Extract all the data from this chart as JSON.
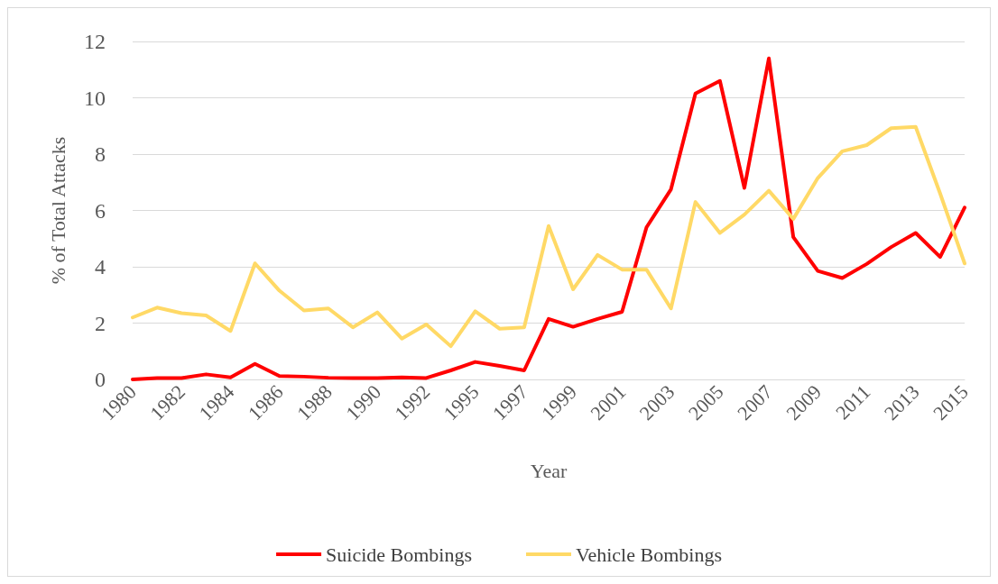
{
  "chart_data": {
    "type": "line",
    "xlabel": "Year",
    "ylabel": "% of Total Attacks",
    "categories": [
      "1980",
      null,
      "1982",
      null,
      "1984",
      null,
      "1986",
      null,
      "1988",
      null,
      "1990",
      null,
      "1992",
      null,
      "1995",
      null,
      "1997",
      null,
      "1999",
      null,
      "2001",
      null,
      "2003",
      null,
      "2005",
      null,
      "2007",
      null,
      "2009",
      null,
      "2011",
      null,
      "2013",
      null,
      "2015"
    ],
    "series": [
      {
        "name": "Suicide Bombings",
        "color": "#ff0000",
        "values": [
          0,
          0.05,
          0.05,
          0.18,
          0.07,
          0.55,
          0.12,
          0.1,
          0.06,
          0.05,
          0.05,
          0.07,
          0.05,
          0.32,
          0.62,
          0.48,
          0.32,
          2.15,
          1.87,
          2.15,
          2.4,
          5.4,
          6.75,
          10.15,
          10.6,
          6.8,
          11.4,
          5.05,
          3.85,
          3.6,
          4.1,
          4.7,
          5.2,
          4.35,
          6.1
        ]
      },
      {
        "name": "Vehicle Bombings",
        "color": "#ffd966",
        "values": [
          2.2,
          2.55,
          2.35,
          2.27,
          1.72,
          4.12,
          3.15,
          2.45,
          2.52,
          1.85,
          2.38,
          1.45,
          1.95,
          1.18,
          2.42,
          1.8,
          1.85,
          5.45,
          3.2,
          4.42,
          3.9,
          3.9,
          2.52,
          6.3,
          5.2,
          5.85,
          6.7,
          5.7,
          7.15,
          8.1,
          8.32,
          8.92,
          8.97,
          6.6,
          4.12
        ]
      }
    ],
    "ylim": [
      0,
      12
    ],
    "yticks": [
      0,
      2,
      4,
      6,
      8,
      10,
      12
    ],
    "grid": "y",
    "legend": "bottom",
    "marker": "none",
    "line_style": "solid"
  }
}
